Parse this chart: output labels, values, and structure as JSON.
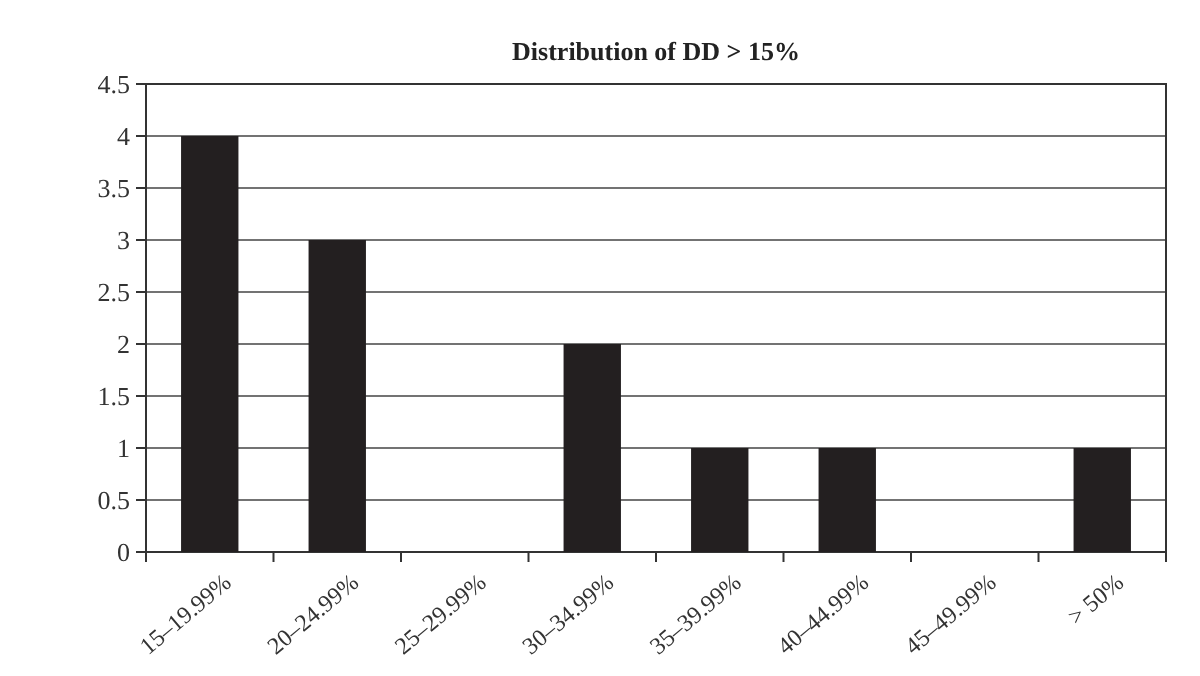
{
  "chart_data": {
    "type": "bar",
    "title": "Distribution of DD > 15%",
    "categories": [
      "15–19.99%",
      "20–24.99%",
      "25–29.99%",
      "30–34.99%",
      "35–39.99%",
      "40–44.99%",
      "45–49.99%",
      "> 50%"
    ],
    "values": [
      4,
      3,
      0,
      2,
      1,
      1,
      0,
      1
    ],
    "color": "#231f20",
    "ylim": [
      0,
      4.5
    ],
    "yticks": [
      0,
      0.5,
      1,
      1.5,
      2,
      2.5,
      3,
      3.5,
      4,
      4.5
    ],
    "grid": "y"
  }
}
